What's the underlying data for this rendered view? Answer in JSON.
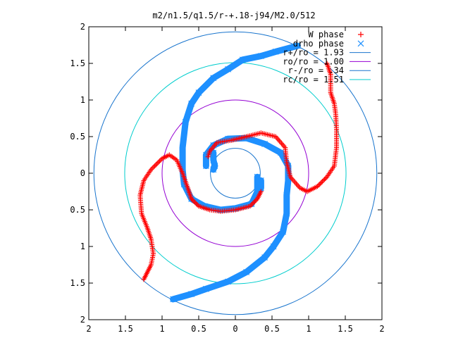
{
  "chart_data": {
    "type": "scatter",
    "title": "m2/n1.5/q1.5/r-+.18-j94/M2.0/512",
    "xlim": [
      -2,
      2
    ],
    "ylim": [
      -2,
      2
    ],
    "x_ticks": [
      -2,
      -1.5,
      -1,
      -0.5,
      0,
      0.5,
      1,
      1.5,
      2
    ],
    "y_ticks": [
      -2,
      -1.5,
      -1,
      -0.5,
      0,
      0.5,
      1,
      1.5,
      2
    ],
    "x_tick_labels": [
      "2",
      "1.5",
      "1",
      "0.5",
      "0",
      "0.5",
      "1",
      "1.5",
      "2"
    ],
    "y_tick_labels": [
      "2",
      "1.5",
      "1",
      "0.5",
      "0",
      "0.5",
      "1",
      "1.5",
      "2"
    ],
    "grid": false,
    "legend_position": "top-right",
    "series": [
      {
        "name": "W phase",
        "kind": "points",
        "marker": "+",
        "color": "#ff0000",
        "points": [
          [
            1.25,
            1.5
          ],
          [
            1.3,
            1.35
          ],
          [
            1.3,
            1.1
          ],
          [
            1.35,
            0.95
          ],
          [
            1.37,
            0.8
          ],
          [
            1.38,
            0.6
          ],
          [
            1.38,
            0.35
          ],
          [
            1.35,
            0.1
          ],
          [
            1.25,
            -0.05
          ],
          [
            1.12,
            -0.18
          ],
          [
            0.98,
            -0.25
          ],
          [
            0.88,
            -0.2
          ],
          [
            0.75,
            -0.05
          ],
          [
            0.7,
            0.15
          ],
          [
            0.68,
            0.35
          ],
          [
            0.55,
            0.5
          ],
          [
            0.35,
            0.55
          ],
          [
            0.15,
            0.5
          ],
          [
            -0.05,
            0.45
          ],
          [
            -0.25,
            0.42
          ],
          [
            -0.35,
            0.3
          ],
          [
            -0.38,
            0.2
          ],
          [
            -1.25,
            -1.45
          ],
          [
            -1.2,
            -1.35
          ],
          [
            -1.15,
            -1.25
          ],
          [
            -1.12,
            -1.1
          ],
          [
            -1.15,
            -0.9
          ],
          [
            -1.2,
            -0.75
          ],
          [
            -1.28,
            -0.55
          ],
          [
            -1.3,
            -0.3
          ],
          [
            -1.25,
            -0.1
          ],
          [
            -1.15,
            0.05
          ],
          [
            -1.0,
            0.2
          ],
          [
            -0.9,
            0.25
          ],
          [
            -0.8,
            0.18
          ],
          [
            -0.72,
            0.0
          ],
          [
            -0.65,
            -0.2
          ],
          [
            -0.6,
            -0.35
          ],
          [
            -0.5,
            -0.45
          ],
          [
            -0.35,
            -0.5
          ],
          [
            -0.2,
            -0.52
          ],
          [
            0.0,
            -0.5
          ],
          [
            0.2,
            -0.45
          ],
          [
            0.3,
            -0.35
          ],
          [
            0.35,
            -0.25
          ]
        ]
      },
      {
        "name": "drho phase",
        "kind": "band",
        "marker": "x",
        "color": "#1e90ff",
        "paths": [
          [
            [
              -0.4,
              0.1
            ],
            [
              -0.4,
              0.25
            ],
            [
              -0.3,
              0.38
            ],
            [
              -0.1,
              0.47
            ],
            [
              0.15,
              0.48
            ],
            [
              0.4,
              0.4
            ],
            [
              0.62,
              0.28
            ],
            [
              0.72,
              0.1
            ],
            [
              0.72,
              -0.1
            ],
            [
              0.7,
              -0.3
            ],
            [
              0.7,
              -0.55
            ],
            [
              0.65,
              -0.8
            ],
            [
              0.52,
              -1.0
            ],
            [
              0.4,
              -1.15
            ],
            [
              0.15,
              -1.35
            ],
            [
              -0.1,
              -1.48
            ],
            [
              -0.4,
              -1.58
            ],
            [
              -0.6,
              -1.65
            ],
            [
              -0.85,
              -1.72
            ]
          ],
          [
            [
              0.3,
              -0.05
            ],
            [
              0.3,
              -0.25
            ],
            [
              0.22,
              -0.42
            ],
            [
              0.0,
              -0.48
            ],
            [
              -0.2,
              -0.5
            ],
            [
              -0.42,
              -0.45
            ],
            [
              -0.6,
              -0.35
            ],
            [
              -0.7,
              -0.15
            ],
            [
              -0.72,
              0.05
            ],
            [
              -0.72,
              0.35
            ],
            [
              -0.68,
              0.7
            ],
            [
              -0.6,
              0.95
            ],
            [
              -0.5,
              1.1
            ],
            [
              -0.3,
              1.3
            ],
            [
              -0.1,
              1.42
            ],
            [
              0.1,
              1.55
            ],
            [
              0.35,
              1.6
            ],
            [
              0.55,
              1.66
            ],
            [
              0.85,
              1.74
            ]
          ],
          [
            [
              -0.3,
              0.28
            ],
            [
              -0.3,
              0.18
            ],
            [
              -0.28,
              0.1
            ],
            [
              -0.3,
              0.05
            ]
          ],
          [
            [
              0.35,
              -0.1
            ],
            [
              0.35,
              -0.2
            ],
            [
              0.3,
              -0.28
            ]
          ]
        ]
      },
      {
        "name": "r+/ro = 1.93",
        "kind": "circle",
        "radius": 1.93,
        "color": "#1874cd"
      },
      {
        "name": "ro/ro = 1.00",
        "kind": "circle",
        "radius": 1.0,
        "color": "#9400d3"
      },
      {
        "name": "r-/ro = .34",
        "kind": "circle",
        "radius": 0.34,
        "color": "#1874cd"
      },
      {
        "name": "rc/ro = 1.51",
        "kind": "circle",
        "radius": 1.51,
        "color": "#00cdcd"
      }
    ]
  }
}
